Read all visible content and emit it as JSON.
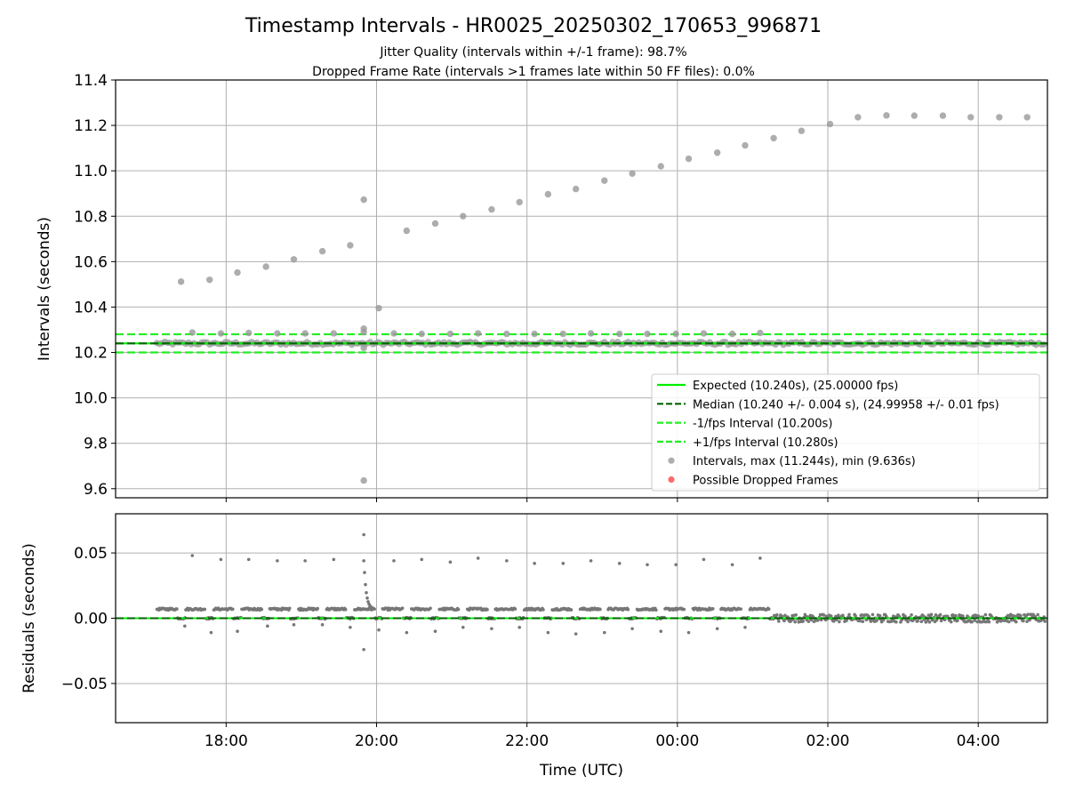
{
  "figure": {
    "title": "Timestamp Intervals - HR0025_20250302_170653_996871",
    "subtitle_line1": "Jitter Quality (intervals within +/-1 frame): 98.7%",
    "subtitle_line2": "Dropped Frame Rate (intervals >1 frames late within 50 FF files): 0.0%"
  },
  "colors": {
    "expected": "#00ee00",
    "median": "#006400",
    "interval_lines": "#22ee22",
    "points": "#999999",
    "residual_points": "#777777",
    "dropped": "#ff4444",
    "grid": "#b0b0b0"
  },
  "chart_data": [
    {
      "type": "scatter",
      "title": "",
      "xlabel": "",
      "ylabel": "Intervals (seconds)",
      "x_unit": "hours since 00:00 UTC (17:05 on day 1 = 17.08, 04:50 on day 2 = 28.83)",
      "xlim": [
        16.53,
        28.92
      ],
      "ylim": [
        9.56,
        11.4
      ],
      "yticks": [
        "9.6",
        "9.8",
        "10.0",
        "10.2",
        "10.4",
        "10.6",
        "10.8",
        "11.0",
        "11.2",
        "11.4"
      ],
      "grid": true,
      "legend_position": "lower-right",
      "reference_lines": [
        {
          "name": "Expected (10.240s), (25.00000 fps)",
          "value": 10.24,
          "style": "solid",
          "color": "#00ee00"
        },
        {
          "name": "Median (10.240 +/- 0.004 s), (24.99958 +/- 0.01 fps)",
          "value": 10.24,
          "style": "dashed",
          "color": "#006400"
        },
        {
          "name": "-1/fps Interval (10.200s)",
          "value": 10.2,
          "style": "dashed",
          "color": "#22ee22"
        },
        {
          "name": "+1/fps Interval (10.280s)",
          "value": 10.28,
          "style": "dashed",
          "color": "#22ee22"
        }
      ],
      "series": [
        {
          "name": "Intervals, max (11.244s), min (9.636s)",
          "band": {
            "x_start": 17.08,
            "x_end": 28.92,
            "y_low": 10.233,
            "y_high": 10.247
          },
          "points": [
            [
              17.4,
              10.512
            ],
            [
              17.78,
              10.52
            ],
            [
              18.15,
              10.552
            ],
            [
              18.53,
              10.578
            ],
            [
              18.9,
              10.61
            ],
            [
              19.28,
              10.646
            ],
            [
              19.65,
              10.672
            ],
            [
              19.83,
              10.873
            ],
            [
              20.03,
              10.395
            ],
            [
              20.4,
              10.736
            ],
            [
              20.78,
              10.768
            ],
            [
              21.15,
              10.8
            ],
            [
              21.53,
              10.83
            ],
            [
              21.9,
              10.862
            ],
            [
              22.28,
              10.897
            ],
            [
              22.65,
              10.92
            ],
            [
              23.03,
              10.957
            ],
            [
              23.4,
              10.988
            ],
            [
              23.78,
              11.02
            ],
            [
              24.15,
              11.053
            ],
            [
              24.53,
              11.08
            ],
            [
              24.9,
              11.112
            ],
            [
              25.28,
              11.144
            ],
            [
              25.65,
              11.176
            ],
            [
              26.03,
              11.206
            ],
            [
              26.4,
              11.236
            ],
            [
              26.78,
              11.244
            ],
            [
              27.15,
              11.243
            ],
            [
              27.53,
              11.243
            ],
            [
              27.9,
              11.236
            ],
            [
              28.28,
              11.236
            ],
            [
              28.65,
              11.236
            ],
            [
              19.83,
              9.636
            ],
            [
              17.55,
              10.288
            ],
            [
              17.93,
              10.284
            ],
            [
              18.3,
              10.286
            ],
            [
              18.68,
              10.284
            ],
            [
              19.05,
              10.284
            ],
            [
              19.43,
              10.284
            ],
            [
              19.83,
              10.305
            ],
            [
              19.83,
              10.29
            ],
            [
              19.83,
              10.22
            ],
            [
              20.23,
              10.284
            ],
            [
              20.6,
              10.282
            ],
            [
              20.98,
              10.282
            ],
            [
              21.35,
              10.284
            ],
            [
              21.73,
              10.282
            ],
            [
              22.1,
              10.282
            ],
            [
              22.48,
              10.282
            ],
            [
              22.85,
              10.284
            ],
            [
              23.23,
              10.282
            ],
            [
              23.6,
              10.282
            ],
            [
              23.98,
              10.282
            ],
            [
              24.35,
              10.284
            ],
            [
              24.73,
              10.282
            ],
            [
              25.1,
              10.286
            ]
          ]
        },
        {
          "name": "Possible Dropped Frames",
          "points": []
        }
      ]
    },
    {
      "type": "scatter",
      "title": "",
      "xlabel": "Time (UTC)",
      "ylabel": "Residuals (seconds)",
      "x_unit": "hours since 00:00 UTC (day 1), same axis as the upper panel",
      "xlim": [
        16.53,
        28.92
      ],
      "ylim": [
        -0.08,
        0.08
      ],
      "yticks": [
        "−0.05",
        "0.00",
        "0.05"
      ],
      "xticks": [
        {
          "value": 18,
          "label": "18:00"
        },
        {
          "value": 20,
          "label": "20:00"
        },
        {
          "value": 22,
          "label": "22:00"
        },
        {
          "value": 24,
          "label": "00:00"
        },
        {
          "value": 26,
          "label": "02:00"
        },
        {
          "value": 28,
          "label": "04:00"
        }
      ],
      "grid": true,
      "reference_lines": [
        {
          "name": "Expected",
          "value": 0.0,
          "style": "solid",
          "color": "#00ee00"
        },
        {
          "name": "Median",
          "value": 0.0,
          "style": "dashed",
          "color": "#006400"
        }
      ],
      "series": [
        {
          "name": "Residuals",
          "pattern": {
            "x_start": 17.08,
            "x_switch": 25.28,
            "x_end": 28.92,
            "period_hours": 0.375,
            "early_offset": 0.007,
            "late_scatter": 0.003
          },
          "points": [
            [
              17.55,
              0.048
            ],
            [
              17.93,
              0.045
            ],
            [
              18.3,
              0.045
            ],
            [
              18.68,
              0.044
            ],
            [
              19.05,
              0.044
            ],
            [
              19.43,
              0.045
            ],
            [
              19.83,
              0.064
            ],
            [
              19.83,
              0.044
            ],
            [
              20.23,
              0.044
            ],
            [
              20.6,
              0.045
            ],
            [
              20.98,
              0.043
            ],
            [
              21.35,
              0.046
            ],
            [
              21.73,
              0.044
            ],
            [
              22.1,
              0.042
            ],
            [
              22.48,
              0.042
            ],
            [
              22.85,
              0.044
            ],
            [
              23.23,
              0.042
            ],
            [
              23.6,
              0.041
            ],
            [
              23.98,
              0.041
            ],
            [
              24.35,
              0.045
            ],
            [
              24.73,
              0.041
            ],
            [
              25.1,
              0.046
            ],
            [
              17.45,
              -0.006
            ],
            [
              17.8,
              -0.011
            ],
            [
              18.15,
              -0.01
            ],
            [
              18.55,
              -0.006
            ],
            [
              18.9,
              -0.005
            ],
            [
              19.28,
              -0.005
            ],
            [
              19.65,
              -0.007
            ],
            [
              19.83,
              -0.024
            ],
            [
              20.03,
              -0.009
            ],
            [
              20.4,
              -0.011
            ],
            [
              20.78,
              -0.01
            ],
            [
              21.15,
              -0.007
            ],
            [
              21.53,
              -0.008
            ],
            [
              21.9,
              -0.007
            ],
            [
              22.28,
              -0.011
            ],
            [
              22.65,
              -0.012
            ],
            [
              23.03,
              -0.011
            ],
            [
              23.4,
              -0.008
            ],
            [
              23.78,
              -0.01
            ],
            [
              24.15,
              -0.011
            ],
            [
              24.53,
              -0.008
            ],
            [
              24.9,
              -0.007
            ]
          ]
        }
      ]
    }
  ]
}
